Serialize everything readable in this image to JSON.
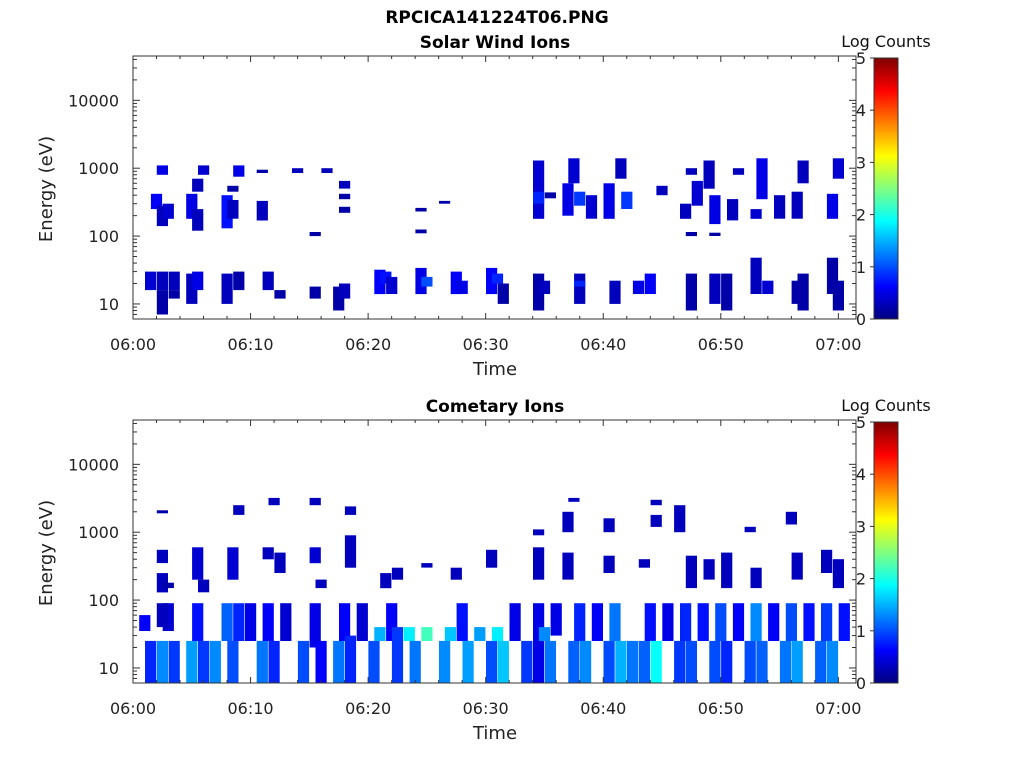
{
  "figure": {
    "title": "RPCICA141224T06.PNG"
  },
  "chart_data": [
    {
      "type": "heatmap",
      "title": "Solar Wind Ions",
      "xlabel": "Time",
      "ylabel": "Energy (eV)",
      "x_ticks": [
        "06:00",
        "06:10",
        "06:20",
        "06:30",
        "06:40",
        "06:50",
        "07:00"
      ],
      "xlim_minutes": [
        0,
        61.5
      ],
      "y_scale": "log",
      "ylim": [
        6,
        45000
      ],
      "y_ticks": [
        {
          "value": 10,
          "label": "10"
        },
        {
          "value": 100,
          "label": "100"
        },
        {
          "value": 1000,
          "label": "1000"
        },
        {
          "value": 10000,
          "label": "10000"
        }
      ],
      "colorbar": {
        "title": "Log Counts",
        "range": [
          0,
          5
        ],
        "ticks": [
          "0",
          "1",
          "2",
          "3",
          "4",
          "5"
        ],
        "colormap": "jet"
      },
      "cells": [
        [
          2.5,
          16,
          30,
          0.3
        ],
        [
          2.5,
          7,
          16,
          0.2
        ],
        [
          1.5,
          16,
          30,
          0.4
        ],
        [
          3.5,
          16,
          30,
          0.3
        ],
        [
          3.5,
          12,
          16,
          0.2
        ],
        [
          5,
          10,
          28,
          0.3
        ],
        [
          5.5,
          16,
          30,
          0.5
        ],
        [
          8,
          10,
          28,
          0.3
        ],
        [
          9,
          16,
          30,
          0.2
        ],
        [
          11.5,
          16,
          30,
          0.3
        ],
        [
          12.5,
          12,
          16,
          0.2
        ],
        [
          15.5,
          12,
          18,
          0.2
        ],
        [
          17.5,
          8,
          18,
          0.2
        ],
        [
          18,
          12,
          20,
          0.3
        ],
        [
          21,
          14,
          32,
          0.6
        ],
        [
          21.5,
          20,
          30,
          0.7
        ],
        [
          22,
          14,
          25,
          0.4
        ],
        [
          24.5,
          14,
          34,
          0.5
        ],
        [
          25,
          18,
          25,
          1.0
        ],
        [
          27.5,
          14,
          30,
          0.6
        ],
        [
          28,
          14,
          22,
          0.5
        ],
        [
          30.5,
          14,
          34,
          0.6
        ],
        [
          31,
          20,
          28,
          0.8
        ],
        [
          31.5,
          10,
          20,
          0.2
        ],
        [
          34.5,
          8,
          28,
          0.2
        ],
        [
          35,
          14,
          22,
          0.3
        ],
        [
          38,
          10,
          28,
          0.3
        ],
        [
          38,
          18,
          22,
          0.8
        ],
        [
          41,
          10,
          22,
          0.3
        ],
        [
          43,
          14,
          22,
          0.5
        ],
        [
          44,
          14,
          28,
          0.6
        ],
        [
          47.5,
          8,
          28,
          0.2
        ],
        [
          49.5,
          10,
          28,
          0.3
        ],
        [
          50.5,
          8,
          28,
          0.2
        ],
        [
          53,
          14,
          48,
          0.3
        ],
        [
          54,
          14,
          22,
          0.4
        ],
        [
          56.5,
          10,
          22,
          0.2
        ],
        [
          57,
          8,
          28,
          0.2
        ],
        [
          59.5,
          14,
          48,
          0.2
        ],
        [
          60,
          8,
          22,
          0.2
        ],
        [
          2,
          250,
          420,
          0.6
        ],
        [
          2.5,
          140,
          280,
          0.3
        ],
        [
          3,
          180,
          300,
          0.4
        ],
        [
          2.5,
          800,
          1100,
          0.5
        ],
        [
          5,
          180,
          420,
          0.5
        ],
        [
          5.5,
          120,
          250,
          0.3
        ],
        [
          6,
          800,
          1100,
          0.4
        ],
        [
          5.5,
          450,
          700,
          0.3
        ],
        [
          8,
          130,
          400,
          0.7
        ],
        [
          8.5,
          180,
          340,
          0.3
        ],
        [
          9,
          750,
          1100,
          0.5
        ],
        [
          8.5,
          450,
          550,
          0.2
        ],
        [
          11,
          170,
          330,
          0.3
        ],
        [
          11,
          850,
          950,
          0.2
        ],
        [
          14,
          850,
          1000,
          0.3
        ],
        [
          16.5,
          850,
          1000,
          0.3
        ],
        [
          18,
          500,
          650,
          0.3
        ],
        [
          18,
          350,
          420,
          0.2
        ],
        [
          18,
          220,
          270,
          0.2
        ],
        [
          34.5,
          180,
          1300,
          0.4
        ],
        [
          34.5,
          300,
          450,
          0.8
        ],
        [
          35.5,
          360,
          440,
          0.2
        ],
        [
          37,
          200,
          600,
          0.5
        ],
        [
          37.5,
          600,
          1400,
          0.4
        ],
        [
          38,
          280,
          450,
          0.9
        ],
        [
          39,
          180,
          400,
          0.4
        ],
        [
          40.5,
          180,
          600,
          0.5
        ],
        [
          41.5,
          700,
          1400,
          0.3
        ],
        [
          42,
          250,
          450,
          0.9
        ],
        [
          45,
          400,
          550,
          0.3
        ],
        [
          47,
          180,
          300,
          0.3
        ],
        [
          47.5,
          800,
          1000,
          0.3
        ],
        [
          48,
          280,
          650,
          0.4
        ],
        [
          49,
          500,
          1300,
          0.3
        ],
        [
          49.5,
          150,
          400,
          0.5
        ],
        [
          51,
          170,
          350,
          0.3
        ],
        [
          51.5,
          800,
          1000,
          0.3
        ],
        [
          53,
          180,
          250,
          0.4
        ],
        [
          53.5,
          350,
          1400,
          0.5
        ],
        [
          55,
          180,
          400,
          0.3
        ],
        [
          56.5,
          180,
          450,
          0.3
        ],
        [
          57,
          600,
          1300,
          0.3
        ],
        [
          59.5,
          180,
          420,
          0.5
        ],
        [
          60,
          700,
          1400,
          0.4
        ],
        [
          24.5,
          230,
          260,
          0.2
        ],
        [
          26.5,
          300,
          330,
          0.2
        ],
        [
          24.5,
          110,
          125,
          0.2
        ],
        [
          15.5,
          100,
          115,
          0.2
        ],
        [
          47.5,
          100,
          115,
          0.2
        ],
        [
          49.5,
          100,
          112,
          0.2
        ]
      ]
    },
    {
      "type": "heatmap",
      "title": "Cometary Ions",
      "xlabel": "Time",
      "ylabel": "Energy (eV)",
      "x_ticks": [
        "06:00",
        "06:10",
        "06:20",
        "06:30",
        "06:40",
        "06:50",
        "07:00"
      ],
      "xlim_minutes": [
        0,
        61.5
      ],
      "y_scale": "log",
      "ylim": [
        6,
        45000
      ],
      "y_ticks": [
        {
          "value": 10,
          "label": "10"
        },
        {
          "value": 100,
          "label": "100"
        },
        {
          "value": 1000,
          "label": "1000"
        },
        {
          "value": 10000,
          "label": "10000"
        }
      ],
      "colorbar": {
        "title": "Log Counts",
        "range": [
          0,
          5
        ],
        "ticks": [
          "0",
          "1",
          "2",
          "3",
          "4",
          "5"
        ],
        "colormap": "jet"
      },
      "cells": [
        [
          1.5,
          6,
          25,
          0.8
        ],
        [
          2.5,
          6,
          25,
          1.3
        ],
        [
          3,
          35,
          90,
          0.4
        ],
        [
          3.5,
          6,
          25,
          0.9
        ],
        [
          2.5,
          40,
          90,
          0.3
        ],
        [
          1,
          35,
          60,
          0.6
        ],
        [
          5,
          6,
          25,
          1.4
        ],
        [
          5.5,
          25,
          90,
          0.7
        ],
        [
          6,
          6,
          25,
          0.9
        ],
        [
          7,
          6,
          25,
          1.3
        ],
        [
          8,
          25,
          90,
          1.1
        ],
        [
          8.5,
          6,
          25,
          1.0
        ],
        [
          9,
          25,
          90,
          0.8
        ],
        [
          10,
          25,
          90,
          0.5
        ],
        [
          11,
          6,
          25,
          1.2
        ],
        [
          11.5,
          25,
          90,
          0.6
        ],
        [
          12,
          6,
          25,
          0.8
        ],
        [
          13,
          25,
          90,
          0.4
        ],
        [
          14.5,
          6,
          25,
          1.0
        ],
        [
          15.5,
          20,
          90,
          0.5
        ],
        [
          16,
          6,
          25,
          0.6
        ],
        [
          17.5,
          6,
          25,
          1.2
        ],
        [
          18,
          25,
          90,
          0.6
        ],
        [
          18.5,
          6,
          30,
          0.8
        ],
        [
          19.5,
          25,
          90,
          0.4
        ],
        [
          20.5,
          6,
          25,
          1.0
        ],
        [
          21,
          25,
          40,
          1.5
        ],
        [
          22,
          25,
          90,
          0.6
        ],
        [
          22.5,
          6,
          40,
          0.9
        ],
        [
          23.5,
          25,
          40,
          1.8
        ],
        [
          24,
          6,
          25,
          1.2
        ],
        [
          25,
          25,
          40,
          2.2
        ],
        [
          26.5,
          6,
          25,
          1.3
        ],
        [
          27,
          25,
          40,
          1.6
        ],
        [
          28,
          25,
          90,
          0.7
        ],
        [
          28.5,
          6,
          25,
          1.4
        ],
        [
          29.5,
          25,
          40,
          1.4
        ],
        [
          30.5,
          6,
          25,
          1.0
        ],
        [
          31,
          25,
          40,
          1.8
        ],
        [
          31.5,
          6,
          25,
          1.6
        ],
        [
          32.5,
          25,
          90,
          0.5
        ],
        [
          33.5,
          6,
          25,
          0.9
        ],
        [
          34.5,
          6,
          90,
          0.5
        ],
        [
          35,
          25,
          40,
          1.3
        ],
        [
          35.5,
          6,
          25,
          1.2
        ],
        [
          36,
          30,
          90,
          0.5
        ],
        [
          37.5,
          6,
          25,
          1.1
        ],
        [
          38,
          25,
          90,
          0.8
        ],
        [
          38.5,
          6,
          25,
          1.3
        ],
        [
          39.5,
          25,
          90,
          0.6
        ],
        [
          40.5,
          6,
          25,
          1.0
        ],
        [
          41,
          25,
          90,
          1.2
        ],
        [
          41.5,
          6,
          25,
          1.5
        ],
        [
          42.5,
          6,
          25,
          1.2
        ],
        [
          43.5,
          6,
          25,
          1.1
        ],
        [
          44,
          25,
          90,
          0.7
        ],
        [
          44.5,
          6,
          25,
          1.9
        ],
        [
          45.5,
          25,
          90,
          0.5
        ],
        [
          46.5,
          6,
          25,
          0.9
        ],
        [
          47,
          25,
          90,
          0.8
        ],
        [
          47.5,
          6,
          25,
          1.0
        ],
        [
          48.5,
          25,
          90,
          0.7
        ],
        [
          49.5,
          6,
          25,
          1.0
        ],
        [
          50,
          25,
          90,
          1.0
        ],
        [
          50.5,
          6,
          25,
          0.8
        ],
        [
          51.5,
          25,
          90,
          0.6
        ],
        [
          52.5,
          6,
          25,
          1.0
        ],
        [
          53,
          25,
          90,
          1.3
        ],
        [
          53.5,
          6,
          25,
          1.1
        ],
        [
          54.5,
          25,
          90,
          0.6
        ],
        [
          55.5,
          6,
          25,
          1.2
        ],
        [
          56,
          25,
          90,
          1.0
        ],
        [
          56.5,
          6,
          25,
          1.4
        ],
        [
          57.5,
          25,
          90,
          0.7
        ],
        [
          58.5,
          6,
          25,
          1.1
        ],
        [
          59,
          25,
          90,
          0.9
        ],
        [
          59.5,
          6,
          25,
          1.3
        ],
        [
          60.5,
          25,
          90,
          0.7
        ],
        [
          2.5,
          130,
          250,
          0.3
        ],
        [
          2.5,
          350,
          550,
          0.3
        ],
        [
          5.5,
          200,
          600,
          0.4
        ],
        [
          6,
          130,
          200,
          0.3
        ],
        [
          8.5,
          200,
          600,
          0.4
        ],
        [
          9,
          1800,
          2500,
          0.3
        ],
        [
          11.5,
          400,
          600,
          0.3
        ],
        [
          12.5,
          250,
          500,
          0.3
        ],
        [
          12,
          2500,
          3200,
          0.3
        ],
        [
          15.5,
          350,
          600,
          0.4
        ],
        [
          15.5,
          2500,
          3200,
          0.3
        ],
        [
          16,
          150,
          200,
          0.3
        ],
        [
          18.5,
          300,
          900,
          0.3
        ],
        [
          18.5,
          1800,
          2400,
          0.3
        ],
        [
          21.5,
          150,
          250,
          0.3
        ],
        [
          22.5,
          200,
          300,
          0.3
        ],
        [
          25,
          300,
          350,
          0.3
        ],
        [
          27.5,
          200,
          300,
          0.3
        ],
        [
          30.5,
          300,
          550,
          0.3
        ],
        [
          34.5,
          200,
          600,
          0.3
        ],
        [
          34.5,
          900,
          1100,
          0.3
        ],
        [
          37,
          200,
          500,
          0.3
        ],
        [
          37,
          1000,
          2000,
          0.3
        ],
        [
          37.5,
          2800,
          3200,
          0.3
        ],
        [
          40.5,
          250,
          450,
          0.3
        ],
        [
          40.5,
          1000,
          1600,
          0.3
        ],
        [
          43.5,
          300,
          400,
          0.3
        ],
        [
          44.5,
          1200,
          1800,
          0.3
        ],
        [
          44.5,
          2500,
          3000,
          0.3
        ],
        [
          46.5,
          1000,
          2500,
          0.3
        ],
        [
          47.5,
          150,
          450,
          0.3
        ],
        [
          49,
          200,
          400,
          0.3
        ],
        [
          50.5,
          150,
          500,
          0.3
        ],
        [
          52.5,
          1000,
          1200,
          0.3
        ],
        [
          53,
          150,
          300,
          0.3
        ],
        [
          56,
          1300,
          2000,
          0.3
        ],
        [
          56.5,
          200,
          500,
          0.3
        ],
        [
          59,
          250,
          550,
          0.3
        ],
        [
          60,
          150,
          400,
          0.3
        ],
        [
          2.5,
          1900,
          2100,
          0.2
        ],
        [
          3,
          150,
          180,
          0.2
        ]
      ]
    }
  ]
}
